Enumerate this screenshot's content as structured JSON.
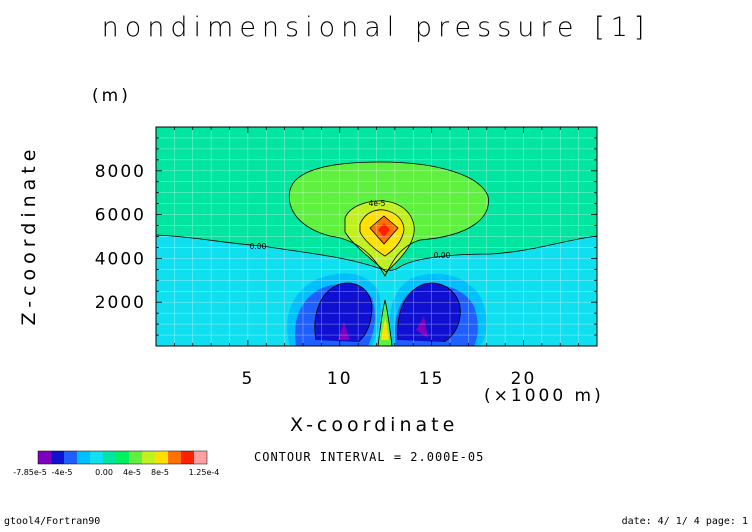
{
  "title": "nondimensional pressure [1]",
  "contour_interval": "CONTOUR INTERVAL = 2.000E-05",
  "footer_left": "gtool4/Fortran90",
  "footer_right": "date: 4/ 1/ 4 page: 1",
  "colorbar": {
    "colors": [
      "#7f00bf",
      "#1010d0",
      "#1f5fff",
      "#00bfff",
      "#10dfef",
      "#00e5a0",
      "#00f060",
      "#60f040",
      "#c0f020",
      "#ffe000",
      "#ff7000",
      "#ff2000",
      "#ffa0a0"
    ],
    "labels": [
      "-7.85e-5",
      "-4e-5",
      "0.00",
      "4e-5",
      "8e-5",
      "1.25e-4"
    ]
  },
  "chart_data": {
    "type": "contour",
    "title": "nondimensional pressure [1]",
    "xlabel": "X-coordinate",
    "x_unit": "(×1000 m)",
    "ylabel": "Z-coordinate",
    "y_unit": "(m)",
    "xlim": [
      0,
      24
    ],
    "ylim": [
      0,
      10000
    ],
    "xticks": [
      5,
      10,
      15,
      20
    ],
    "yticks": [
      2000,
      4000,
      6000,
      8000
    ],
    "contour_labels": [
      "4e-5",
      "0.00",
      "0.00"
    ],
    "value_range": [
      -7.85e-05,
      0.000125
    ],
    "contour_interval": 2e-05
  }
}
